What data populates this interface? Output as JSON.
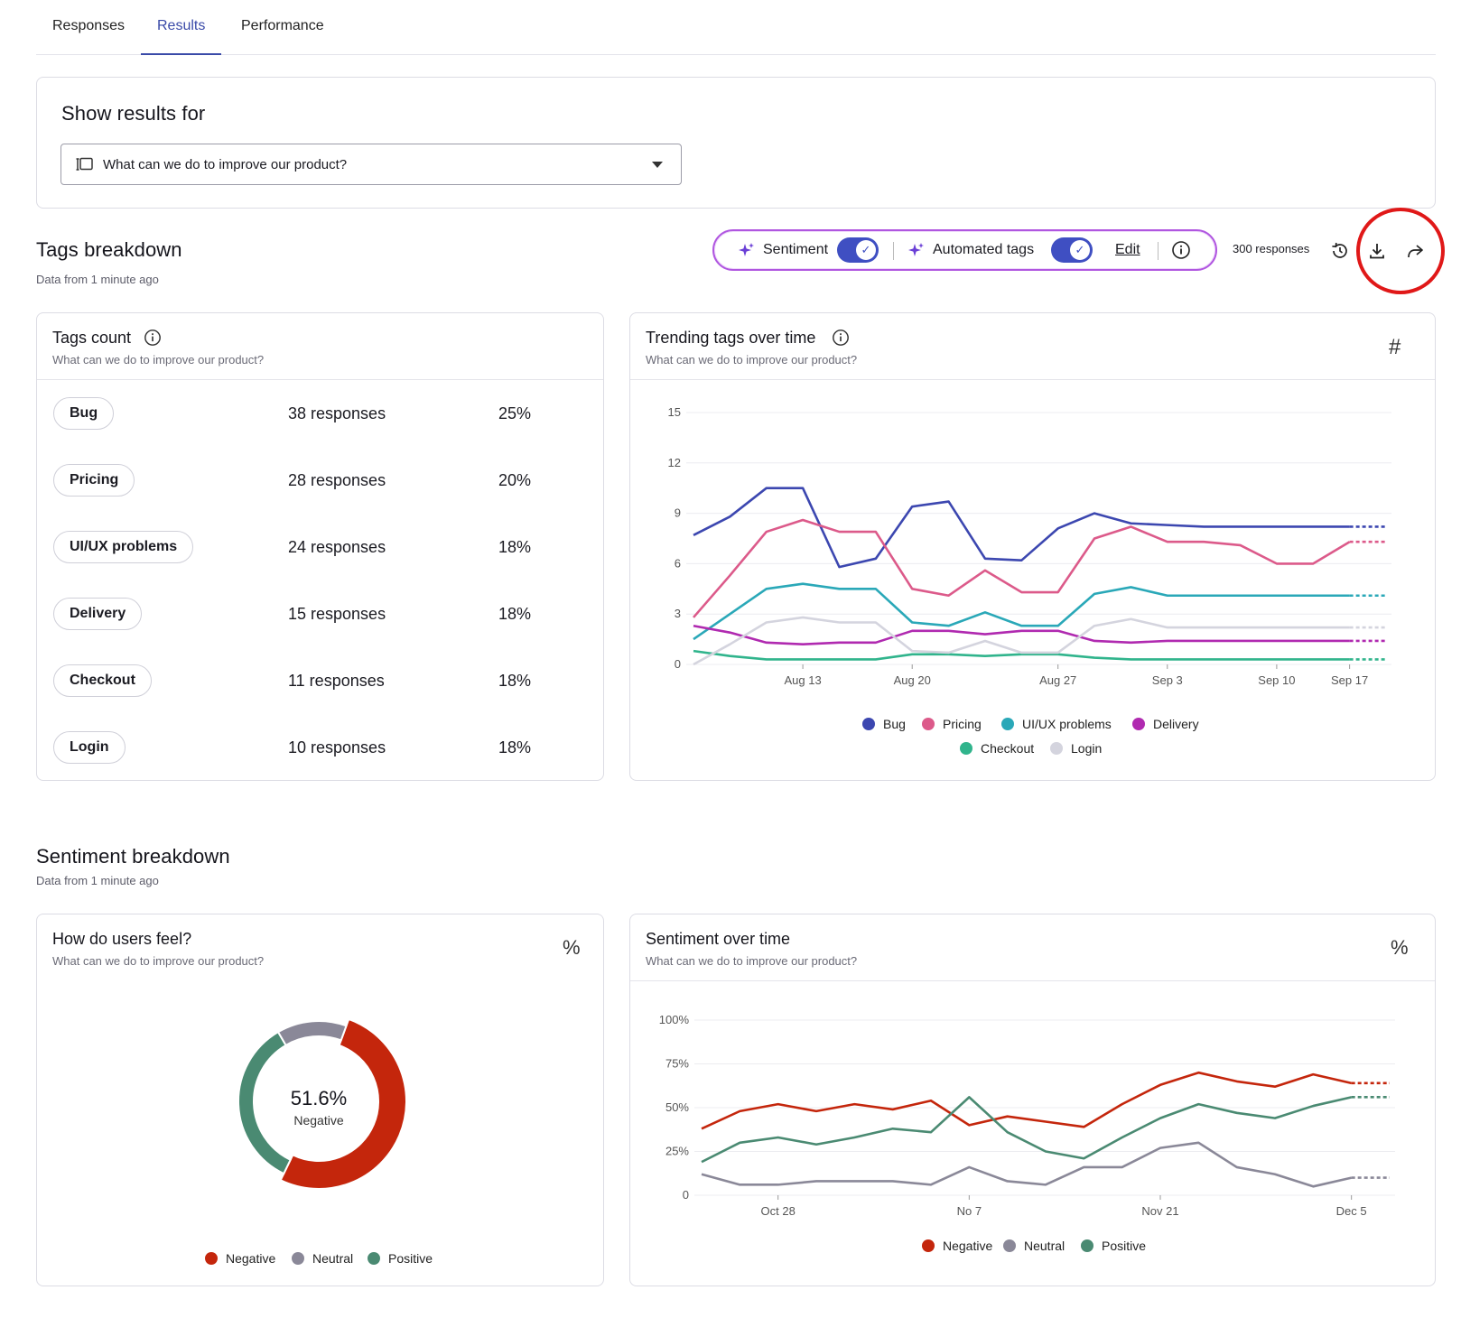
{
  "tabs": [
    {
      "label": "Responses"
    },
    {
      "label": "Results"
    },
    {
      "label": "Performance"
    }
  ],
  "show_results": {
    "title": "Show results for",
    "selected_question": "What can we do to improve our product?"
  },
  "tags_breakdown": {
    "title": "Tags breakdown",
    "data_freshness": "Data from 1 minute ago",
    "sentiment_label": "Sentiment",
    "sentiment_enabled": true,
    "automated_tags_label": "Automated tags",
    "automated_tags_enabled": true,
    "edit_label": "Edit",
    "responses_count": "300 responses"
  },
  "tags_count": {
    "title": "Tags count",
    "subtitle": "What can we do to improve our product?",
    "rows": [
      {
        "tag": "Bug",
        "responses": "38 responses",
        "percent": "25%"
      },
      {
        "tag": "Pricing",
        "responses": "28 responses",
        "percent": "20%"
      },
      {
        "tag": "UI/UX problems",
        "responses": "24 responses",
        "percent": "18%"
      },
      {
        "tag": "Delivery",
        "responses": "15 responses",
        "percent": "18%"
      },
      {
        "tag": "Checkout",
        "responses": "11 responses",
        "percent": "18%"
      },
      {
        "tag": "Login",
        "responses": "10 responses",
        "percent": "18%"
      }
    ]
  },
  "trending": {
    "title": "Trending tags over time",
    "subtitle": "What can we do to improve our product?"
  },
  "sentiment_breakdown": {
    "title": "Sentiment breakdown",
    "data_freshness": "Data from 1 minute ago"
  },
  "how_feel": {
    "title": "How do users feel?",
    "subtitle": "What can we do to improve our product?",
    "center_value": "51.6%",
    "center_label": "Negative"
  },
  "sentiment_time": {
    "title": "Sentiment over time",
    "subtitle": "What can we do to improve our product?"
  },
  "colors": {
    "accent": "#3a4aa8",
    "bug": "#3c47b0",
    "pricing": "#dc5a8a",
    "uiux": "#2aa8b8",
    "delivery": "#b02ab0",
    "checkout": "#30b48c",
    "login": "#d4d4de",
    "negative": "#c4260c",
    "neutral": "#8a8898",
    "positive": "#4a8a72"
  },
  "chart_data": [
    {
      "type": "line",
      "title": "Trending tags over time",
      "x": [
        "Aug 9",
        "Aug 11",
        "Aug 13",
        "Aug 15",
        "Aug 17",
        "Aug 19",
        "Aug 20",
        "Aug 22",
        "Aug 24",
        "Aug 26",
        "Aug 28",
        "Aug 30",
        "Sep 1",
        "Sep 3",
        "Sep 5",
        "Sep 7",
        "Sep 10",
        "Sep 13",
        "Sep 17",
        "Sep 19"
      ],
      "x_ticks": [
        "Aug 13",
        "Aug 20",
        "Aug 27",
        "Sep 3",
        "Sep 10",
        "Sep 17"
      ],
      "ylim": [
        0,
        15
      ],
      "y_ticks": [
        0,
        3,
        6,
        9,
        12,
        15
      ],
      "grid": true,
      "legend": "bottom",
      "series": [
        {
          "name": "Bug",
          "values": [
            7.7,
            8.8,
            10.5,
            10.5,
            5.8,
            6.3,
            9.4,
            9.7,
            6.3,
            6.2,
            8.1,
            9.0,
            8.4,
            8.3,
            8.2,
            8.2,
            8.2,
            8.2,
            8.2,
            8.2
          ]
        },
        {
          "name": "Pricing",
          "values": [
            2.8,
            5.3,
            7.9,
            8.6,
            7.9,
            7.9,
            4.5,
            4.1,
            5.6,
            4.3,
            4.3,
            7.5,
            8.2,
            7.3,
            7.3,
            7.1,
            6.0,
            6.0,
            7.3,
            7.3
          ]
        },
        {
          "name": "UI/UX problems",
          "values": [
            1.5,
            3.0,
            4.5,
            4.8,
            4.5,
            4.5,
            2.5,
            2.3,
            3.1,
            2.3,
            2.3,
            4.2,
            4.6,
            4.1,
            4.1,
            4.1,
            4.1,
            4.1,
            4.1,
            4.1
          ]
        },
        {
          "name": "Delivery",
          "values": [
            2.3,
            1.9,
            1.3,
            1.2,
            1.3,
            1.3,
            2.0,
            2.0,
            1.8,
            2.0,
            2.0,
            1.4,
            1.3,
            1.4,
            1.4,
            1.4,
            1.4,
            1.4,
            1.4,
            1.4
          ]
        },
        {
          "name": "Checkout",
          "values": [
            0.8,
            0.5,
            0.3,
            0.3,
            0.3,
            0.3,
            0.6,
            0.6,
            0.5,
            0.6,
            0.6,
            0.4,
            0.3,
            0.3,
            0.3,
            0.3,
            0.3,
            0.3,
            0.3,
            0.3
          ]
        },
        {
          "name": "Login",
          "values": [
            0.0,
            1.2,
            2.5,
            2.8,
            2.5,
            2.5,
            0.8,
            0.7,
            1.4,
            0.7,
            0.7,
            2.3,
            2.7,
            2.2,
            2.2,
            2.2,
            2.2,
            2.2,
            2.2,
            2.2
          ]
        }
      ]
    },
    {
      "type": "pie",
      "title": "How do users feel?",
      "labels": [
        "Negative",
        "Neutral",
        "Positive"
      ],
      "values": [
        51.6,
        14.0,
        34.4
      ],
      "legend": "bottom"
    },
    {
      "type": "line",
      "title": "Sentiment over time",
      "x": [
        "Oct 18",
        "Oct 23",
        "Oct 28",
        "Nov 1",
        "Nov 4",
        "Nov 6",
        "Nov 9",
        "Nov 11",
        "Nov 13",
        "Nov 16",
        "Nov 19",
        "Nov 22",
        "Nov 24",
        "Nov 27",
        "Nov 30",
        "Dec 2",
        "Dec 5",
        "Dec 7",
        "Dec 9"
      ],
      "x_ticks": [
        "Oct 28",
        "No 7",
        "Nov 21",
        "Dec 5"
      ],
      "ylim": [
        0,
        100
      ],
      "y_ticks": [
        "0",
        "25%",
        "50%",
        "75%",
        "100%"
      ],
      "grid": true,
      "legend": "bottom",
      "series": [
        {
          "name": "Negative",
          "values": [
            38,
            48,
            52,
            48,
            52,
            49,
            54,
            40,
            45,
            42,
            39,
            52,
            63,
            70,
            65,
            62,
            69,
            64,
            64
          ]
        },
        {
          "name": "Neutral",
          "values": [
            12,
            6,
            6,
            8,
            8,
            8,
            6,
            16,
            8,
            6,
            16,
            16,
            27,
            30,
            16,
            12,
            5,
            10,
            10
          ]
        },
        {
          "name": "Positive",
          "values": [
            19,
            30,
            33,
            29,
            33,
            38,
            36,
            56,
            36,
            25,
            21,
            33,
            44,
            52,
            47,
            44,
            51,
            56,
            56
          ]
        }
      ]
    }
  ]
}
